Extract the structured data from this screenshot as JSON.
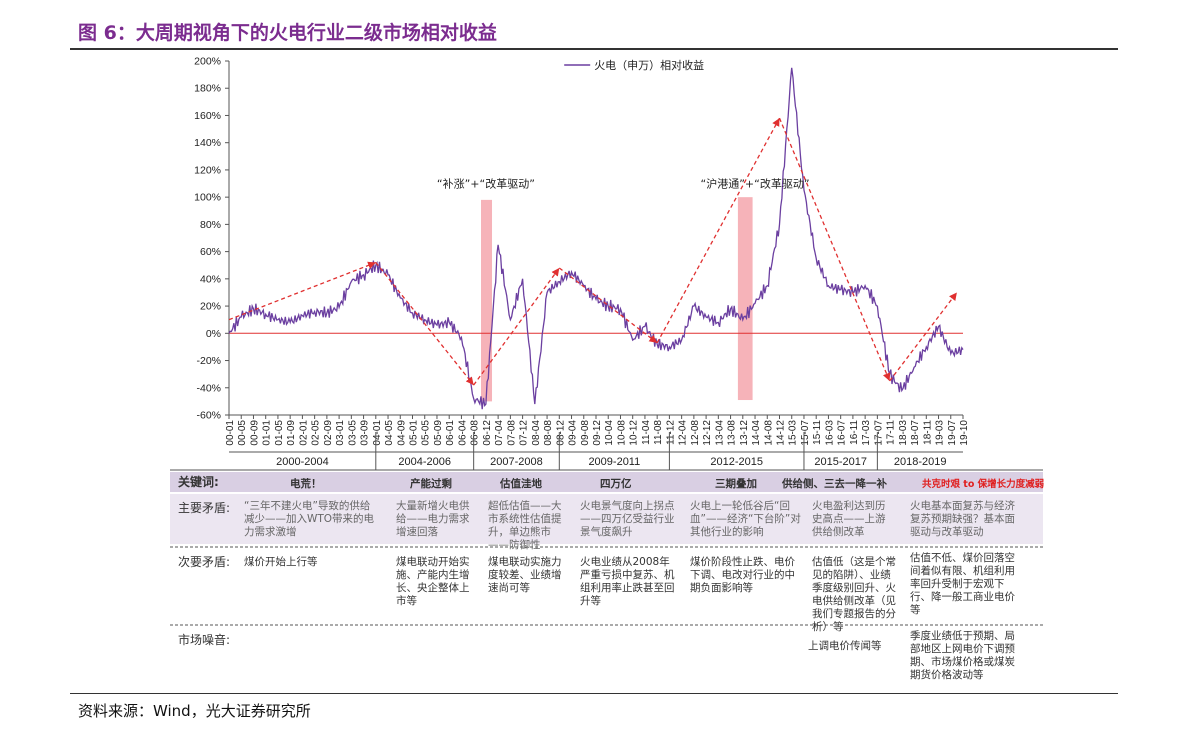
{
  "title": "图 6：大周期视角下的火电行业二级市场相对收益",
  "source": "资料来源：Wind，光大证券研究所",
  "chart_data": {
    "type": "line",
    "legend": "火电（申万）相对收益",
    "legend_placement": "top-center",
    "ylim": [
      -60,
      200
    ],
    "yticks": [
      "200%",
      "180%",
      "160%",
      "140%",
      "120%",
      "100%",
      "80%",
      "60%",
      "40%",
      "20%",
      "0%",
      "-20%",
      "-40%",
      "-60%"
    ],
    "xticks": [
      "00-01",
      "00-05",
      "00-09",
      "01-01",
      "01-05",
      "01-09",
      "02-01",
      "02-05",
      "02-09",
      "03-01",
      "03-05",
      "03-09",
      "04-01",
      "04-05",
      "04-09",
      "05-01",
      "05-05",
      "05-09",
      "06-01",
      "06-04",
      "06-08",
      "06-12",
      "07-04",
      "07-08",
      "07-12",
      "08-04",
      "08-08",
      "08-12",
      "09-04",
      "09-08",
      "09-12",
      "10-04",
      "10-08",
      "10-12",
      "11-04",
      "11-08",
      "11-12",
      "12-04",
      "12-08",
      "12-12",
      "13-04",
      "13-08",
      "13-12",
      "14-04",
      "14-08",
      "14-12",
      "15-03",
      "15-07",
      "15-11",
      "16-03",
      "16-07",
      "16-11",
      "17-03",
      "17-07",
      "17-11",
      "18-03",
      "18-07",
      "18-11",
      "19-03",
      "19-07",
      "19-10"
    ],
    "series": [
      {
        "name": "火电（申万）相对收益",
        "color": "#6b3fa0",
        "points": [
          [
            0,
            0
          ],
          [
            1,
            12
          ],
          [
            2,
            18
          ],
          [
            3,
            14
          ],
          [
            4,
            10
          ],
          [
            5,
            8
          ],
          [
            6,
            13
          ],
          [
            7,
            16
          ],
          [
            8,
            15
          ],
          [
            9,
            19
          ],
          [
            10,
            38
          ],
          [
            11,
            43
          ],
          [
            12,
            50
          ],
          [
            13,
            43
          ],
          [
            14,
            26
          ],
          [
            15,
            15
          ],
          [
            16,
            10
          ],
          [
            17,
            6
          ],
          [
            18,
            8
          ],
          [
            19,
            -3
          ],
          [
            20,
            -48
          ],
          [
            21,
            -52
          ],
          [
            22,
            65
          ],
          [
            23,
            10
          ],
          [
            24,
            40
          ],
          [
            25,
            -52
          ],
          [
            26,
            30
          ],
          [
            27,
            38
          ],
          [
            28,
            45
          ],
          [
            29,
            35
          ],
          [
            30,
            25
          ],
          [
            31,
            20
          ],
          [
            32,
            18
          ],
          [
            33,
            -5
          ],
          [
            34,
            5
          ],
          [
            35,
            -8
          ],
          [
            36,
            -10
          ],
          [
            37,
            -5
          ],
          [
            38,
            20
          ],
          [
            39,
            12
          ],
          [
            40,
            8
          ],
          [
            41,
            18
          ],
          [
            42,
            10
          ],
          [
            43,
            22
          ],
          [
            44,
            35
          ],
          [
            45,
            80
          ],
          [
            46,
            195
          ],
          [
            47,
            105
          ],
          [
            48,
            55
          ],
          [
            49,
            35
          ],
          [
            50,
            32
          ],
          [
            51,
            30
          ],
          [
            52,
            35
          ],
          [
            53,
            20
          ],
          [
            54,
            -30
          ],
          [
            55,
            -42
          ],
          [
            56,
            -25
          ],
          [
            57,
            -10
          ],
          [
            58,
            5
          ],
          [
            59,
            -15
          ],
          [
            60,
            -12
          ]
        ]
      }
    ],
    "trend_arrows": [
      [
        [
          0,
          10
        ],
        [
          12,
          52
        ]
      ],
      [
        [
          12,
          52
        ],
        [
          20,
          -38
        ]
      ],
      [
        [
          20,
          -38
        ],
        [
          27,
          48
        ]
      ],
      [
        [
          27,
          48
        ],
        [
          35,
          -7
        ]
      ],
      [
        [
          35,
          -7
        ],
        [
          45,
          158
        ]
      ],
      [
        [
          45,
          158
        ],
        [
          54,
          -35
        ]
      ],
      [
        [
          54,
          -35
        ],
        [
          59.5,
          30
        ]
      ]
    ],
    "shaded_periods": [
      {
        "x0": 20.6,
        "x1": 21.5,
        "y0": -50,
        "y1": 98
      },
      {
        "x0": 41.6,
        "x1": 42.8,
        "y0": -49,
        "y1": 100
      }
    ],
    "annotations": [
      {
        "text": "“补涨”+“改革驱动”",
        "x": 21,
        "y": 107
      },
      {
        "text": "“沪港通”+“改革驱动”",
        "x": 43,
        "y": 107
      }
    ],
    "zero_line_color": "#e03030",
    "arrow_color": "#e03030",
    "shade_color": "#f4a6ad",
    "periods": [
      {
        "label": "2000-2004",
        "from": 0,
        "to": 12
      },
      {
        "label": "2004-2006",
        "from": 12,
        "to": 20
      },
      {
        "label": "2007-2008",
        "from": 20,
        "to": 27
      },
      {
        "label": "2009-2011",
        "from": 27,
        "to": 36
      },
      {
        "label": "2012-2015",
        "from": 36,
        "to": 47
      },
      {
        "label": "2015-2017",
        "from": 47,
        "to": 53
      },
      {
        "label": "2018-2019",
        "from": 53,
        "to": 60
      }
    ]
  },
  "table": {
    "keyword_header": "关键词:",
    "keywords": [
      "电荒！",
      "产能过剩",
      "估值洼地",
      "四万亿",
      "三期叠加",
      "供给侧、三去一降一补",
      "共克时艰 to 保增长力度减弱"
    ],
    "main_label": "主要矛盾:",
    "main": [
      "“三年不建火电”导致的供给减少——加入WTO带来的电力需求激增",
      "大量新增火电供给——电力需求增速回落",
      "超低估值——大市系统性估值提升，单边熊市——防御性",
      "火电景气度向上拐点——四万亿受益行业景气度飙升",
      "火电上一轮低谷后“回血”——经济“下台阶”对其他行业的影响",
      "火电盈利达到历史高点——上游供给侧改革",
      "火电基本面复苏与经济复苏预期缺强？基本面驱动与改革驱动"
    ],
    "secondary_label": "次要矛盾:",
    "secondary": [
      "煤价开始上行等",
      "煤电联动开始实施、产能内生增长、央企整体上市等",
      "煤电联动实施力度较差、业绩增速尚可等",
      "火电业绩从2008年严重亏损中复苏、机组利用率止跌甚至回升等",
      "煤价阶段性止跌、电价下调、电改对行业的中期负面影响等",
      "估值低（这是个常见的陷阱）、业绩季度级别回升、火电供给侧改革（见我们专题报告的分析）等",
      "估值不低、煤价回落空间着似有限、机组利用率回升受制于宏观下行、降一般工商业电价等"
    ],
    "noise_label": "市场噪音:",
    "noise": [
      "上调电价传闻等",
      "季度业绩低于预期、局部地区上网电价下调预期、市场煤价格或煤炭期货价格波动等"
    ]
  }
}
